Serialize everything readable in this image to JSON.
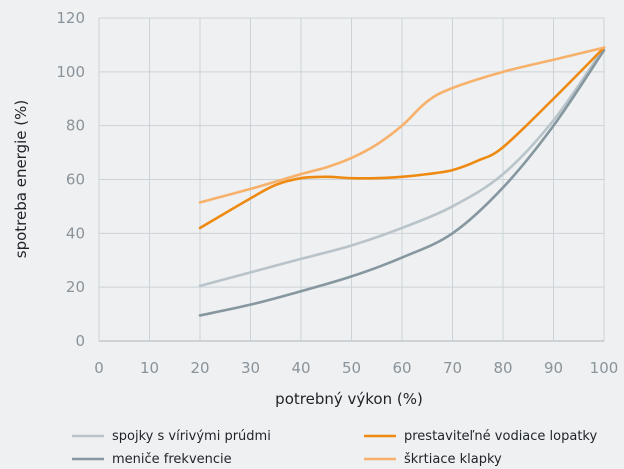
{
  "chart_data": {
    "type": "line",
    "title": "",
    "xlabel": "potrebný výkon (%)",
    "ylabel": "spotreba energie (%)",
    "xlim": [
      0,
      100
    ],
    "ylim": [
      0,
      120
    ],
    "xticks": [
      0,
      10,
      20,
      30,
      40,
      50,
      60,
      70,
      80,
      90,
      100
    ],
    "yticks": [
      0,
      20,
      40,
      60,
      80,
      100,
      120
    ],
    "grid": true,
    "legend_position": "bottom",
    "series": [
      {
        "name": "spojky s vírivými prúdmi",
        "color": "#b9c4ca",
        "x": [
          20,
          30,
          40,
          50,
          60,
          70,
          80,
          90,
          100
        ],
        "y": [
          20.5,
          25.5,
          30.5,
          35.5,
          42,
          50,
          62,
          82,
          109
        ]
      },
      {
        "name": "meniče frekvencie",
        "color": "#87979f",
        "x": [
          20,
          30,
          40,
          50,
          60,
          70,
          80,
          90,
          100
        ],
        "y": [
          9.5,
          13.5,
          18.5,
          24,
          31,
          40,
          57,
          80,
          108
        ]
      },
      {
        "name": "prestaviteľné vodiace lopatky",
        "color": "#ee8a12",
        "x": [
          20,
          30,
          35,
          40,
          45,
          50,
          55,
          60,
          65,
          70,
          75,
          80,
          90,
          100
        ],
        "y": [
          42,
          53,
          58,
          60.5,
          61,
          60.5,
          60.5,
          61,
          62,
          63.5,
          67,
          72,
          90,
          109
        ]
      },
      {
        "name": "škrtiace klapky",
        "color": "#f7b16b",
        "x": [
          20,
          30,
          40,
          45,
          50,
          55,
          60,
          65,
          70,
          80,
          90,
          100
        ],
        "y": [
          51.5,
          56.5,
          62,
          64.5,
          68,
          73,
          80,
          89,
          94,
          100,
          104.5,
          109
        ]
      }
    ]
  },
  "legend_order": [
    0,
    1,
    2,
    3
  ]
}
